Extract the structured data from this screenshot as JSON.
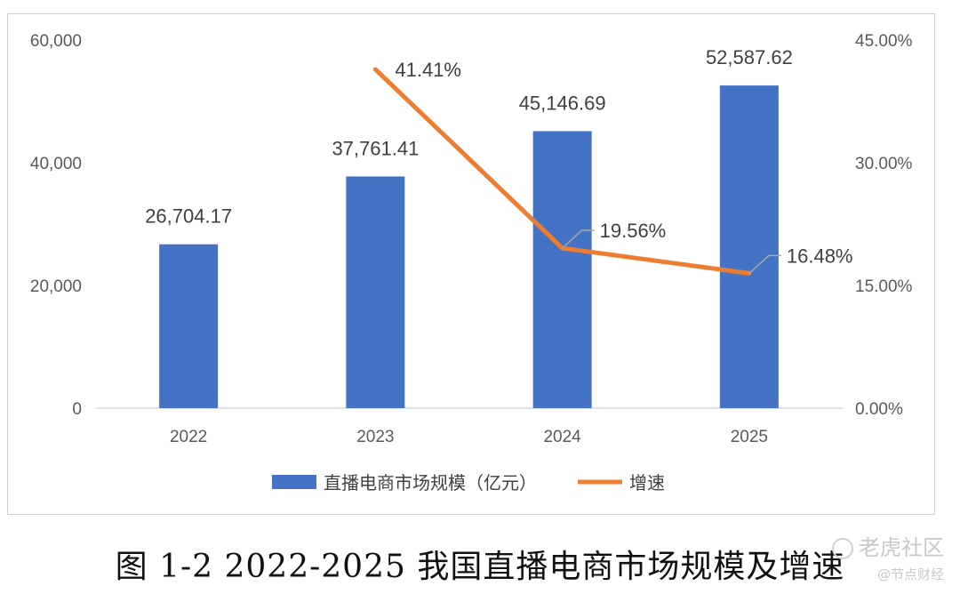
{
  "chart_data": {
    "type": "bar",
    "categories": [
      "2022",
      "2023",
      "2024",
      "2025"
    ],
    "series": [
      {
        "name": "直播电商市场规模（亿元）",
        "kind": "bar",
        "axis": "left",
        "values": [
          26704.17,
          37761.41,
          45146.69,
          52587.62
        ],
        "labels": [
          "26,704.17",
          "37,761.41",
          "45,146.69",
          "52,587.62"
        ],
        "color": "#4472c4"
      },
      {
        "name": "增速",
        "kind": "line",
        "axis": "right",
        "values": [
          null,
          41.41,
          19.56,
          16.48
        ],
        "labels": [
          null,
          "41.41%",
          "19.56%",
          "16.48%"
        ],
        "color": "#ed7d31"
      }
    ],
    "y_left": {
      "ylim": [
        0,
        60000
      ],
      "ticks": [
        "0",
        "20,000",
        "40,000",
        "60,000"
      ]
    },
    "y_right": {
      "ylim": [
        0,
        45
      ],
      "ticks": [
        "0.00%",
        "15.00%",
        "30.00%",
        "45.00%"
      ]
    },
    "grid": false,
    "legend_position": "bottom"
  },
  "caption": "图 1-2 2022-2025 我国直播电商市场规模及增速",
  "watermark": {
    "main": "老虎社区",
    "sub": "@节点财经"
  }
}
